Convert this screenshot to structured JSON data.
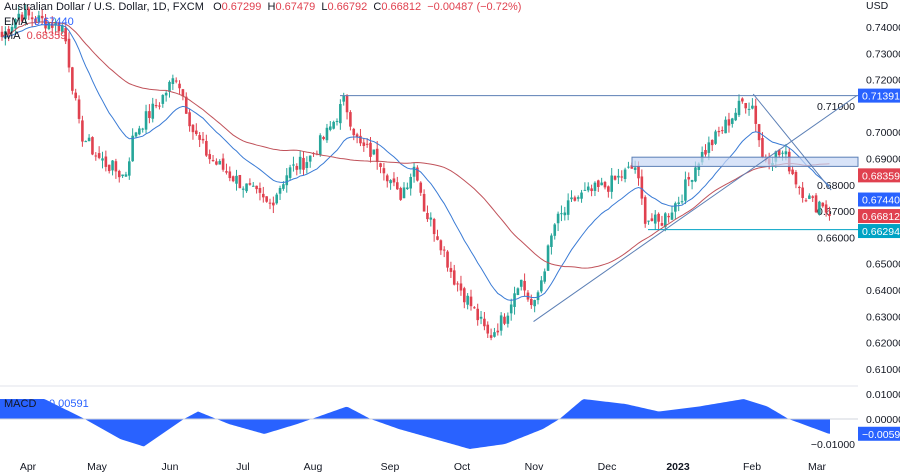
{
  "header": {
    "title": "Australian Dollar / U.S. Dollar, 1D, FXCM",
    "o_label": "O",
    "o": "0.67299",
    "h_label": "H",
    "h": "0.67479",
    "l_label": "L",
    "l": "0.66792",
    "c_label": "C",
    "c": "0.66812",
    "change": "−0.00487 (−0.72%)"
  },
  "indicators": {
    "ema": {
      "label": "EMA",
      "value": "0.67440"
    },
    "ma": {
      "label": "MA",
      "value": "0.68359"
    },
    "macd": {
      "label": "MACD",
      "value": "−0.00591"
    }
  },
  "colors": {
    "up": "#26a69a",
    "down": "#e0414f",
    "ema": "#3a7bd5",
    "ma": "#c0525a",
    "drawing": "#5b7fb5",
    "macd": "#2962ff",
    "zone": "#c7d7f5"
  },
  "chart_data": {
    "type": "candlestick",
    "currency_label": "USD",
    "y_ticks": [
      "0.74000",
      "0.73000",
      "0.72000",
      "0.71000",
      "0.70000",
      "0.69000",
      "0.68000",
      "0.67000",
      "0.66000",
      "0.65000",
      "0.64000",
      "0.63000",
      "0.62000",
      "0.61000"
    ],
    "ylim": [
      0.61,
      0.74
    ],
    "x_ticks": [
      "Apr",
      "May",
      "Jun",
      "Jul",
      "Aug",
      "Sep",
      "Oct",
      "Nov",
      "Dec",
      "2023",
      "Feb",
      "Mar"
    ],
    "close_path": [
      [
        "2022-03-20",
        0.735
      ],
      [
        "2022-03-28",
        0.745
      ],
      [
        "2022-04-16",
        0.74
      ],
      [
        "2022-04-23",
        0.7
      ],
      [
        "2022-05-01",
        0.69
      ],
      [
        "2022-05-12",
        0.683
      ],
      [
        "2022-05-16",
        0.7
      ],
      [
        "2022-05-27",
        0.712
      ],
      [
        "2022-06-03",
        0.722
      ],
      [
        "2022-06-10",
        0.7
      ],
      [
        "2022-06-17",
        0.69
      ],
      [
        "2022-07-01",
        0.68
      ],
      [
        "2022-07-12",
        0.672
      ],
      [
        "2022-07-20",
        0.685
      ],
      [
        "2022-07-29",
        0.69
      ],
      [
        "2022-08-06",
        0.7
      ],
      [
        "2022-08-13",
        0.712
      ],
      [
        "2022-08-19",
        0.695
      ],
      [
        "2022-08-28",
        0.69
      ],
      [
        "2022-09-05",
        0.675
      ],
      [
        "2022-09-12",
        0.688
      ],
      [
        "2022-09-16",
        0.67
      ],
      [
        "2022-09-22",
        0.66
      ],
      [
        "2022-09-28",
        0.645
      ],
      [
        "2022-10-05",
        0.635
      ],
      [
        "2022-10-13",
        0.622
      ],
      [
        "2022-10-20",
        0.63
      ],
      [
        "2022-10-26",
        0.645
      ],
      [
        "2022-11-01",
        0.632
      ],
      [
        "2022-11-10",
        0.665
      ],
      [
        "2022-11-19",
        0.675
      ],
      [
        "2022-12-03",
        0.68
      ],
      [
        "2022-12-14",
        0.687
      ],
      [
        "2022-12-18",
        0.668
      ],
      [
        "2022-12-24",
        0.665
      ],
      [
        "2023-01-02",
        0.675
      ],
      [
        "2023-01-10",
        0.69
      ],
      [
        "2023-01-19",
        0.7
      ],
      [
        "2023-01-29",
        0.712
      ],
      [
        "2023-02-02",
        0.71
      ],
      [
        "2023-02-06",
        0.69
      ],
      [
        "2023-02-15",
        0.692
      ],
      [
        "2023-02-21",
        0.68
      ],
      [
        "2023-02-28",
        0.672
      ],
      [
        "2023-03-03",
        0.674
      ],
      [
        "2023-03-06",
        0.66812
      ]
    ],
    "price_labels": [
      {
        "value": "0.71391",
        "color": "#2962ff"
      },
      {
        "value": "0.68359",
        "color": "#e0414f"
      },
      {
        "value": "0.67440",
        "color": "#2962ff"
      },
      {
        "value": "0.66812",
        "color": "#e0414f"
      },
      {
        "value": "0.66294",
        "color": "#00a3c4"
      }
    ],
    "drawings": {
      "resistance": 0.71391,
      "support": 0.66294,
      "zone": [
        0.687,
        0.6905
      ],
      "uptrend": [
        [
          "2022-11-01",
          0.628
        ],
        [
          "2023-03-18",
          0.714
        ]
      ],
      "downtrend": [
        [
          "2023-02-02",
          0.7145
        ],
        [
          "2023-03-07",
          0.678
        ]
      ]
    },
    "macd": {
      "y_ticks": [
        "0.01000",
        "0.00000",
        "−0.01000"
      ],
      "last_label": "−0.00591",
      "ylim": [
        -0.012,
        0.012
      ],
      "path": [
        [
          "2022-03-20",
          0.008
        ],
        [
          "2022-04-08",
          0.008
        ],
        [
          "2022-04-25",
          0.0
        ],
        [
          "2022-05-10",
          -0.008
        ],
        [
          "2022-05-20",
          -0.011
        ],
        [
          "2022-06-06",
          0.0
        ],
        [
          "2022-06-12",
          0.003
        ],
        [
          "2022-06-25",
          -0.002
        ],
        [
          "2022-07-10",
          -0.006
        ],
        [
          "2022-07-24",
          -0.002
        ],
        [
          "2022-08-05",
          0.002
        ],
        [
          "2022-08-14",
          0.005
        ],
        [
          "2022-08-24",
          0.0
        ],
        [
          "2022-09-05",
          -0.004
        ],
        [
          "2022-09-20",
          -0.008
        ],
        [
          "2022-10-05",
          -0.012
        ],
        [
          "2022-10-20",
          -0.01
        ],
        [
          "2022-11-05",
          -0.004
        ],
        [
          "2022-11-12",
          0.0
        ],
        [
          "2022-11-22",
          0.008
        ],
        [
          "2022-12-10",
          0.006
        ],
        [
          "2022-12-24",
          0.003
        ],
        [
          "2023-01-10",
          0.005
        ],
        [
          "2023-01-29",
          0.008
        ],
        [
          "2023-02-08",
          0.005
        ],
        [
          "2023-02-17",
          0.0
        ],
        [
          "2023-03-06",
          -0.0059
        ]
      ]
    }
  }
}
